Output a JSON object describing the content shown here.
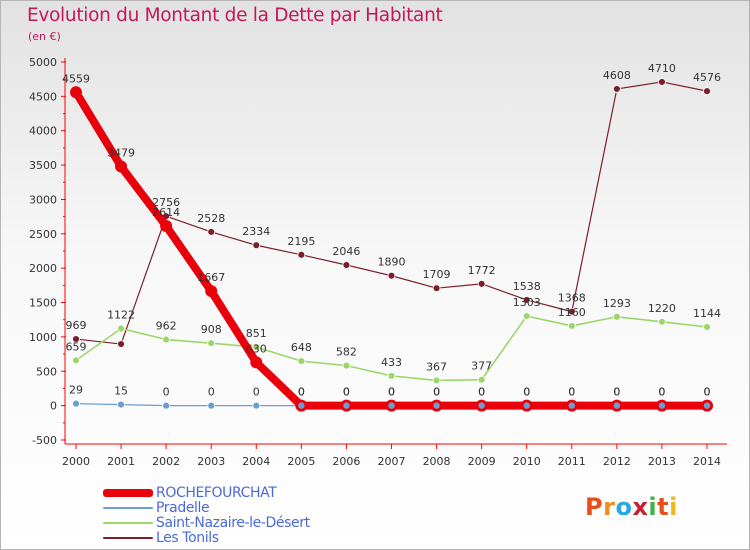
{
  "title": "Evolution du Montant de la Dette par Habitant",
  "unit": "(en €)",
  "brand": "Proxiti",
  "chart_data": {
    "type": "line",
    "title": "Evolution du Montant de la Dette par Habitant",
    "ylabel": "(en €)",
    "xlabel": "",
    "ylim": [
      -500,
      5000
    ],
    "yticks": [
      -500,
      0,
      500,
      1000,
      1500,
      2000,
      2500,
      3000,
      3500,
      4000,
      4500,
      5000
    ],
    "grid": false,
    "legend_position": "bottom-left",
    "categories": [
      "2000",
      "2001",
      "2002",
      "2003",
      "2004",
      "2005",
      "2006",
      "2007",
      "2008",
      "2009",
      "2010",
      "2011",
      "2012",
      "2013",
      "2014"
    ],
    "series": [
      {
        "name": "Les Tonils",
        "color": "#7b1f2a",
        "width": 1.2,
        "marker": 3.5,
        "values": [
          969,
          896,
          2756,
          2528,
          2334,
          2195,
          2046,
          1890,
          1709,
          1772,
          1538,
          1368,
          4608,
          4710,
          4576
        ],
        "labels": [
          "969",
          "",
          "2756",
          "2528",
          "2334",
          "2195",
          "2046",
          "1890",
          "1709",
          "1772",
          "1538",
          "1368",
          "4608",
          "4710",
          "4576"
        ]
      },
      {
        "name": "Saint-Nazaire-le-Désert",
        "color": "#9bd66b",
        "width": 1.6,
        "marker": 3.5,
        "values": [
          659,
          1122,
          962,
          908,
          851,
          648,
          582,
          433,
          367,
          377,
          1303,
          1160,
          1293,
          1220,
          1144
        ],
        "labels": [
          "659",
          "1122",
          "962",
          "908",
          "851",
          "648",
          "582",
          "433",
          "367",
          "377",
          "1303",
          "1160",
          "1293",
          "1220",
          "1144"
        ]
      },
      {
        "name": "Pradelle",
        "color": "#6a9ed1",
        "width": 1.2,
        "marker": 3.5,
        "values": [
          29,
          15,
          0,
          0,
          0,
          0,
          0,
          0,
          0,
          0,
          0,
          0,
          0,
          0,
          0
        ],
        "labels": [
          "29",
          "15",
          "0",
          "0",
          "0",
          "0",
          "0",
          "0",
          "0",
          "0",
          "0",
          "0",
          "0",
          "0",
          "0"
        ]
      },
      {
        "name": "ROCHEFOURCHAT",
        "color": "#e8000b",
        "width": 8,
        "marker": 6,
        "values": [
          4559,
          3479,
          2614,
          1667,
          630,
          0,
          0,
          0,
          0,
          0,
          0,
          0,
          0,
          0,
          0
        ],
        "labels": [
          "4559",
          "3479",
          "2614",
          "1667",
          "630",
          "0",
          "0",
          "0",
          "0",
          "0",
          "0",
          "0",
          "0",
          "0",
          "0"
        ]
      }
    ],
    "legend": [
      "ROCHEFOURCHAT",
      "Pradelle",
      "Saint-Nazaire-le-Désert",
      "Les Tonils"
    ]
  }
}
